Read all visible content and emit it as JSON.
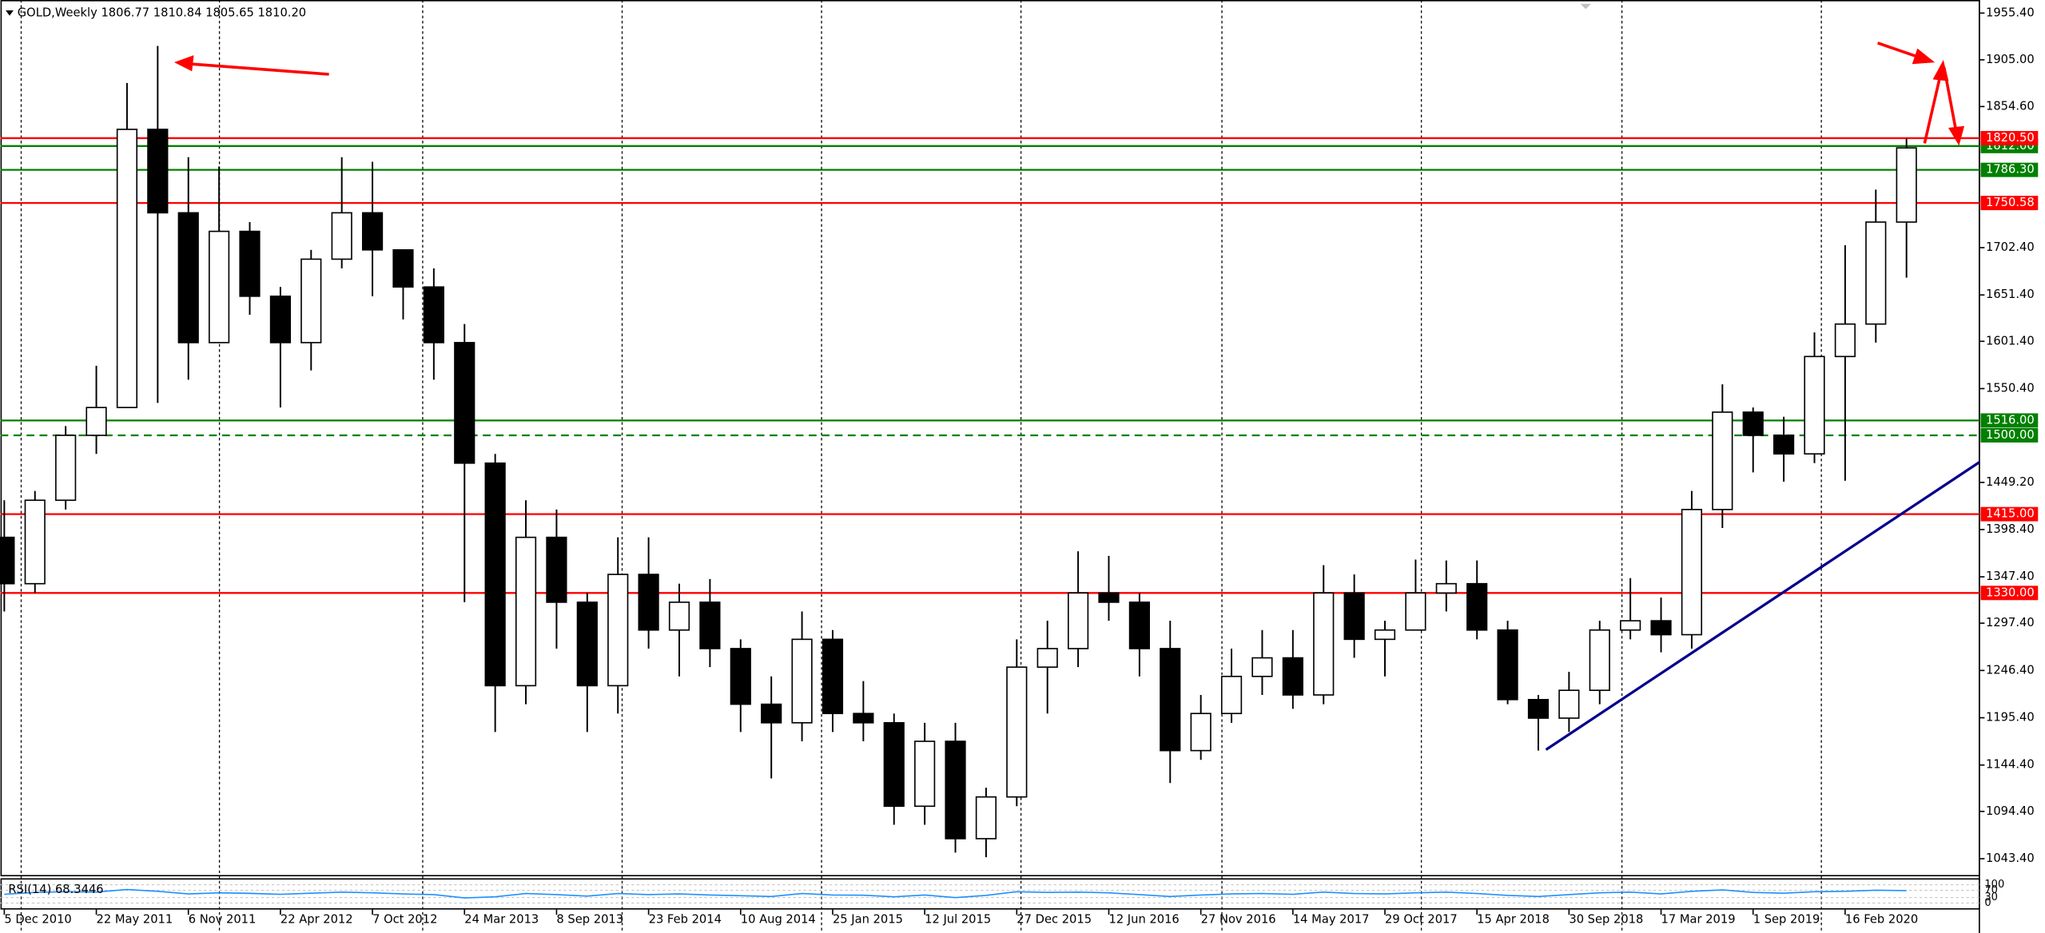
{
  "chart_data": {
    "type": "candlestick",
    "title": "GOLD,Weekly  1806.77 1810.84 1805.65 1810.20",
    "x": [
      0,
      8,
      16,
      24,
      32,
      40,
      48,
      56,
      64,
      72,
      80,
      88,
      96,
      104,
      112,
      120,
      128,
      136,
      144,
      152,
      160,
      168,
      176,
      184,
      192,
      200,
      208,
      216,
      224,
      232,
      240,
      248,
      256,
      264,
      272,
      280,
      288,
      296,
      304,
      312,
      320,
      328,
      336,
      344,
      352,
      360,
      368,
      376,
      384,
      392,
      400,
      408,
      416,
      424,
      432,
      440,
      448,
      456,
      464,
      472,
      480,
      488,
      496
    ],
    "series": [
      {
        "up_color": "#ffffff",
        "down_color": "#000000",
        "color": "#000000",
        "open": [
          1390,
          1340,
          1430,
          1500,
          1530,
          1830,
          1740,
          1600,
          1720,
          1650,
          1600,
          1690,
          1740,
          1700,
          1660,
          1600,
          1470,
          1230,
          1390,
          1320,
          1230,
          1350,
          1290,
          1320,
          1270,
          1210,
          1190,
          1280,
          1200,
          1190,
          1100,
          1170,
          1065,
          1110,
          1250,
          1270,
          1330,
          1320,
          1270,
          1160,
          1200,
          1240,
          1260,
          1220,
          1330,
          1280,
          1290,
          1330,
          1340,
          1290,
          1215,
          1195,
          1225,
          1290,
          1300,
          1285,
          1420,
          1525,
          1500,
          1480,
          1585,
          1620,
          1730
        ],
        "high": [
          1430,
          1440,
          1510,
          1575,
          1880,
          1920,
          1800,
          1790,
          1730,
          1660,
          1700,
          1800,
          1795,
          1700,
          1680,
          1620,
          1480,
          1430,
          1420,
          1330,
          1390,
          1390,
          1340,
          1345,
          1280,
          1240,
          1310,
          1290,
          1235,
          1200,
          1190,
          1190,
          1120,
          1280,
          1300,
          1375,
          1370,
          1330,
          1300,
          1220,
          1270,
          1290,
          1290,
          1360,
          1350,
          1300,
          1366,
          1365,
          1365,
          1300,
          1220,
          1245,
          1300,
          1346,
          1325,
          1440,
          1555,
          1530,
          1520,
          1611,
          1705,
          1765,
          1820
        ],
        "low": [
          1310,
          1330,
          1420,
          1480,
          1530,
          1535,
          1560,
          1600,
          1630,
          1530,
          1570,
          1680,
          1650,
          1625,
          1560,
          1320,
          1180,
          1210,
          1270,
          1180,
          1200,
          1270,
          1240,
          1250,
          1180,
          1130,
          1170,
          1180,
          1170,
          1080,
          1080,
          1050,
          1045,
          1100,
          1200,
          1250,
          1300,
          1240,
          1125,
          1150,
          1190,
          1220,
          1205,
          1210,
          1260,
          1240,
          1290,
          1310,
          1280,
          1210,
          1160,
          1180,
          1210,
          1280,
          1266,
          1270,
          1400,
          1460,
          1450,
          1470,
          1451,
          1600,
          1670
        ],
        "close": [
          1340,
          1430,
          1500,
          1530,
          1830,
          1740,
          1600,
          1720,
          1650,
          1600,
          1690,
          1740,
          1700,
          1660,
          1600,
          1470,
          1230,
          1390,
          1320,
          1230,
          1350,
          1290,
          1320,
          1270,
          1210,
          1190,
          1280,
          1200,
          1190,
          1100,
          1170,
          1065,
          1110,
          1250,
          1270,
          1330,
          1320,
          1270,
          1160,
          1200,
          1240,
          1260,
          1220,
          1330,
          1280,
          1290,
          1330,
          1340,
          1290,
          1215,
          1195,
          1225,
          1290,
          1300,
          1285,
          1420,
          1525,
          1500,
          1480,
          1585,
          1620,
          1730,
          1810
        ]
      }
    ],
    "xlim": [
      -1,
      515
    ],
    "ylim": [
      1025.1,
      1969.5
    ],
    "xticks": [
      {
        "value": 0,
        "label": "5 Dec 2010"
      },
      {
        "value": 24,
        "label": "22 May 2011"
      },
      {
        "value": 48,
        "label": "6 Nov 2011"
      },
      {
        "value": 72,
        "label": "22 Apr 2012"
      },
      {
        "value": 96,
        "label": "7 Oct 2012"
      },
      {
        "value": 120,
        "label": "24 Mar 2013"
      },
      {
        "value": 144,
        "label": "8 Sep 2013"
      },
      {
        "value": 168,
        "label": "23 Feb 2014"
      },
      {
        "value": 192,
        "label": "10 Aug 2014"
      },
      {
        "value": 216,
        "label": "25 Jan 2015"
      },
      {
        "value": 240,
        "label": "12 Jul 2015"
      },
      {
        "value": 264,
        "label": "27 Dec 2015"
      },
      {
        "value": 288,
        "label": "12 Jun 2016"
      },
      {
        "value": 312,
        "label": "27 Nov 2016"
      },
      {
        "value": 336,
        "label": "14 May 2017"
      },
      {
        "value": 360,
        "label": "29 Oct 2017"
      },
      {
        "value": 384,
        "label": "15 Apr 2018"
      },
      {
        "value": 408,
        "label": "30 Sep 2018"
      },
      {
        "value": 432,
        "label": "17 Mar 2019"
      },
      {
        "value": 456,
        "label": "1 Sep 2019"
      },
      {
        "value": 480,
        "label": "16 Feb 2020"
      }
    ],
    "xgrid": [
      4.4,
      56.1,
      109.1,
      161.1,
      213.1,
      265.1,
      317.5,
      369.5,
      421.8,
      473.8
    ],
    "yticks": [
      {
        "value": 1955.4,
        "label": "1955.40"
      },
      {
        "value": 1905,
        "label": "1905.00"
      },
      {
        "value": 1854.6,
        "label": "1854.60"
      },
      {
        "value": 1702.4,
        "label": "1702.40"
      },
      {
        "value": 1651.4,
        "label": "1651.40"
      },
      {
        "value": 1601.4,
        "label": "1601.40"
      },
      {
        "value": 1550.4,
        "label": "1550.40"
      },
      {
        "value": 1449.2,
        "label": "1449.20"
      },
      {
        "value": 1398.4,
        "label": "1398.40"
      },
      {
        "value": 1347.4,
        "label": "1347.40"
      },
      {
        "value": 1297.4,
        "label": "1297.40"
      },
      {
        "value": 1246.4,
        "label": "1246.40"
      },
      {
        "value": 1195.4,
        "label": "1195.40"
      },
      {
        "value": 1144.4,
        "label": "1144.40"
      },
      {
        "value": 1094.4,
        "label": "1094.40"
      },
      {
        "value": 1043.4,
        "label": "1043.40"
      }
    ],
    "levels": [
      {
        "value": 1812,
        "label": "1812.00",
        "color": "#008000"
      },
      {
        "value": 1820.5,
        "label": "1820.50",
        "color": "#ff0000"
      },
      {
        "value": 1786.3,
        "label": "1786.30",
        "color": "#008000"
      },
      {
        "value": 1750.58,
        "label": "1750.58",
        "color": "#ff0000"
      },
      {
        "value": 1516,
        "label": "1516.00",
        "color": "#008000"
      },
      {
        "value": 1500,
        "label": "1500.00",
        "color": "#008000",
        "dashed": true
      },
      {
        "value": 1415,
        "label": "1415.00",
        "color": "#ff0000"
      },
      {
        "value": 1330,
        "label": "1330.00",
        "color": "#ff0000"
      }
    ],
    "trendline": {
      "x": [
        402,
        515
      ],
      "y": [
        1161,
        1471
      ],
      "color": "#00008b"
    },
    "rsi": {
      "label": "RSI(14) 68.3446",
      "color": "#1e90ff",
      "ylim": [
        0,
        100
      ],
      "yticks": [
        100,
        70,
        30,
        0
      ],
      "values": [
        48,
        58,
        62,
        60,
        74,
        64,
        50,
        56,
        53,
        48,
        54,
        60,
        56,
        50,
        46,
        28,
        34,
        52,
        46,
        38,
        52,
        46,
        50,
        44,
        40,
        36,
        52,
        44,
        43,
        34,
        44,
        30,
        42,
        62,
        58,
        60,
        56,
        46,
        36,
        44,
        50,
        52,
        48,
        60,
        52,
        50,
        56,
        60,
        52,
        42,
        36,
        46,
        56,
        60,
        50,
        64,
        72,
        58,
        54,
        62,
        64,
        70,
        68
      ]
    }
  }
}
